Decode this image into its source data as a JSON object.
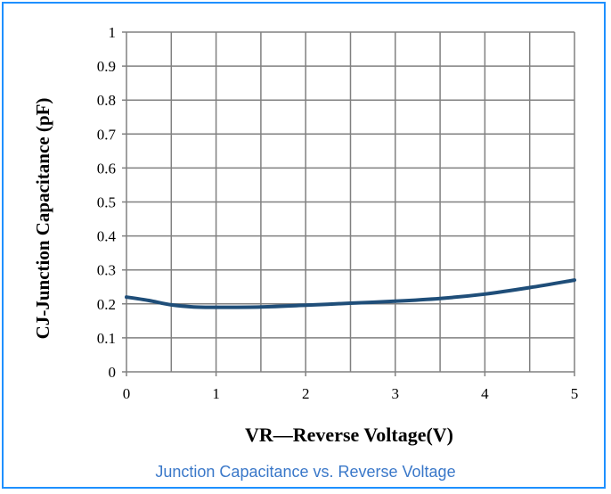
{
  "caption": "Junction Capacitance vs. Reverse Voltage",
  "colors": {
    "border": "#1e90ff",
    "line": "#1f4e79",
    "grid": "#808080",
    "caption": "#3a78c9"
  },
  "chart_data": {
    "type": "line",
    "xlabel": "VR—Reverse Voltage(V)",
    "ylabel": "CJ-Junction Capacitance (pF)",
    "xlim": [
      0,
      5
    ],
    "ylim": [
      0,
      1
    ],
    "x_ticks": [
      "0",
      "1",
      "2",
      "3",
      "4",
      "5"
    ],
    "y_ticks": [
      "0",
      "0.1",
      "0.2",
      "0.3",
      "0.4",
      "0.5",
      "0.6",
      "0.7",
      "0.8",
      "0.9",
      "1"
    ],
    "grid": true,
    "series": [
      {
        "x": [
          0,
          0.25,
          0.5,
          0.75,
          1.0,
          1.5,
          2.0,
          2.5,
          3.0,
          3.5,
          4.0,
          4.5,
          5.0
        ],
        "values": [
          0.22,
          0.21,
          0.197,
          0.191,
          0.19,
          0.191,
          0.196,
          0.202,
          0.208,
          0.216,
          0.229,
          0.248,
          0.27
        ]
      }
    ]
  }
}
